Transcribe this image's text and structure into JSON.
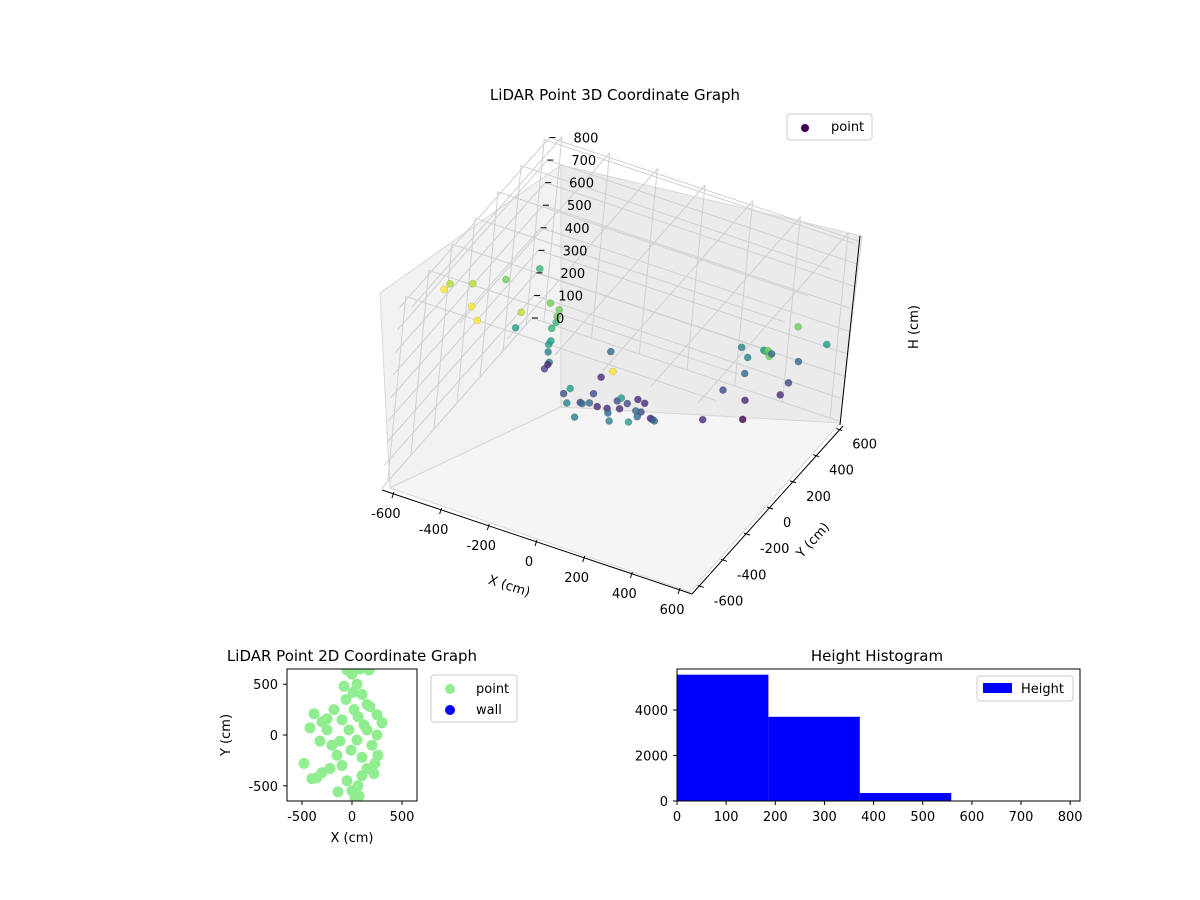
{
  "chart_data": [
    {
      "type": "scatter",
      "projection": "3d",
      "title": "LiDAR Point 3D Coordinate Graph",
      "xlabel": "X (cm)",
      "ylabel": "Y (cm)",
      "zlabel": "H (cm)",
      "xlim": [
        -650,
        650
      ],
      "ylim": [
        -650,
        650
      ],
      "zlim": [
        0,
        820
      ],
      "z_inverted": true,
      "x_ticks": [
        -600,
        -400,
        -200,
        0,
        200,
        400,
        600
      ],
      "y_ticks": [
        -600,
        -400,
        -200,
        0,
        200,
        400,
        600
      ],
      "z_ticks": [
        0,
        100,
        200,
        300,
        400,
        500,
        600,
        700,
        800
      ],
      "grid": true,
      "legend": {
        "position": "top-right",
        "entries": [
          "point"
        ]
      },
      "colormap": "viridis",
      "series": [
        {
          "name": "point",
          "points": [
            [
              -100,
              50,
              150
            ],
            [
              -80,
              100,
              120
            ],
            [
              -50,
              150,
              100
            ],
            [
              0,
              200,
              130
            ],
            [
              50,
              150,
              160
            ],
            [
              100,
              100,
              140
            ],
            [
              -150,
              0,
              180
            ],
            [
              -120,
              50,
              200
            ],
            [
              0,
              100,
              170
            ],
            [
              80,
              50,
              190
            ],
            [
              150,
              0,
              210
            ],
            [
              -200,
              -50,
              230
            ],
            [
              -100,
              -100,
              250
            ],
            [
              0,
              0,
              240
            ],
            [
              100,
              -50,
              260
            ],
            [
              200,
              -100,
              280
            ],
            [
              -50,
              -150,
              300
            ],
            [
              50,
              -200,
              320
            ],
            [
              150,
              -150,
              310
            ],
            [
              -300,
              0,
              350
            ],
            [
              -250,
              -100,
              380
            ],
            [
              -280,
              -50,
              420
            ],
            [
              -260,
              -80,
              460
            ],
            [
              -270,
              -60,
              500
            ],
            [
              -250,
              -70,
              540
            ],
            [
              -240,
              -90,
              580
            ],
            [
              -230,
              -100,
              620
            ],
            [
              -260,
              -120,
              650
            ],
            [
              350,
              400,
              50
            ],
            [
              360,
              380,
              150
            ],
            [
              340,
              400,
              250
            ],
            [
              350,
              390,
              330
            ],
            [
              330,
              370,
              380
            ],
            [
              0,
              -400,
              400
            ],
            [
              100,
              -300,
              360
            ],
            [
              -100,
              -250,
              340
            ],
            [
              200,
              -350,
              420
            ],
            [
              -400,
              -100,
              480
            ],
            [
              -450,
              200,
              550
            ],
            [
              -500,
              0,
              600
            ],
            [
              -550,
              -200,
              680
            ],
            [
              -600,
              -300,
              720
            ],
            [
              -580,
              -400,
              760
            ],
            [
              -420,
              -500,
              800
            ],
            [
              -350,
              -600,
              820
            ],
            [
              -300,
              -300,
              700
            ],
            [
              200,
              -550,
              760
            ],
            [
              450,
              300,
              450
            ],
            [
              500,
              200,
              520
            ],
            [
              550,
              100,
              600
            ],
            [
              600,
              0,
              650
            ],
            [
              580,
              300,
              600
            ],
            [
              620,
              500,
              420
            ],
            [
              520,
              480,
              320
            ],
            [
              480,
              500,
              200
            ],
            [
              430,
              550,
              100
            ],
            [
              400,
              500,
              300
            ],
            [
              -350,
              100,
              200
            ],
            [
              -380,
              200,
              150
            ],
            [
              -200,
              300,
              100
            ],
            [
              250,
              250,
              100
            ],
            [
              300,
              300,
              220
            ],
            [
              -150,
              250,
              260
            ],
            [
              120,
              -250,
              440
            ],
            [
              -50,
              -350,
              480
            ]
          ]
        }
      ]
    },
    {
      "type": "scatter",
      "title": "LiDAR Point 2D Coordinate Graph",
      "xlabel": "X (cm)",
      "ylabel": "Y (cm)",
      "xlim": [
        -650,
        650
      ],
      "ylim": [
        -650,
        650
      ],
      "x_ticks": [
        -500,
        0,
        500
      ],
      "y_ticks": [
        -500,
        0,
        500
      ],
      "legend": {
        "position": "outside-right",
        "entries": [
          "point",
          "wall"
        ]
      },
      "series": [
        {
          "name": "point",
          "color": "#90ee90",
          "points": [
            [
              -480,
              -280
            ],
            [
              -400,
              -430
            ],
            [
              -350,
              -420
            ],
            [
              -300,
              -370
            ],
            [
              -420,
              70
            ],
            [
              -380,
              210
            ],
            [
              -300,
              130
            ],
            [
              -250,
              50
            ],
            [
              -200,
              -100
            ],
            [
              -150,
              -200
            ],
            [
              -100,
              -300
            ],
            [
              -50,
              -450
            ],
            [
              0,
              -550
            ],
            [
              30,
              -620
            ],
            [
              60,
              -500
            ],
            [
              100,
              -400
            ],
            [
              150,
              -330
            ],
            [
              220,
              -380
            ],
            [
              260,
              -200
            ],
            [
              200,
              -100
            ],
            [
              250,
              0
            ],
            [
              300,
              120
            ],
            [
              250,
              200
            ],
            [
              150,
              300
            ],
            [
              100,
              400
            ],
            [
              50,
              500
            ],
            [
              0,
              600
            ],
            [
              -50,
              640
            ],
            [
              80,
              650
            ],
            [
              170,
              640
            ],
            [
              -100,
              150
            ],
            [
              -30,
              50
            ],
            [
              50,
              -50
            ],
            [
              120,
              100
            ],
            [
              -180,
              250
            ],
            [
              -250,
              160
            ],
            [
              -320,
              -60
            ],
            [
              100,
              -220
            ],
            [
              180,
              280
            ],
            [
              -60,
              350
            ],
            [
              20,
              250
            ],
            [
              -10,
              -150
            ],
            [
              60,
              180
            ],
            [
              -120,
              -60
            ],
            [
              150,
              50
            ],
            [
              230,
              -280
            ],
            [
              -220,
              -330
            ],
            [
              10,
              420
            ],
            [
              -80,
              480
            ],
            [
              70,
              -600
            ],
            [
              -140,
              -560
            ]
          ]
        },
        {
          "name": "wall",
          "color": "#0000ff",
          "points": []
        }
      ]
    },
    {
      "type": "bar",
      "title": "Height Histogram",
      "xlabel": "",
      "ylabel": "",
      "xlim": [
        0,
        820
      ],
      "ylim": [
        0,
        5800
      ],
      "x_ticks": [
        0,
        100,
        200,
        300,
        400,
        500,
        600,
        700,
        800
      ],
      "y_ticks": [
        0,
        2000,
        4000
      ],
      "legend": {
        "position": "top-right",
        "entries": [
          "Height"
        ]
      },
      "series": [
        {
          "name": "Height",
          "color": "#0000ff",
          "bins": [
            0,
            186,
            372,
            558,
            744
          ],
          "values": [
            5550,
            3700,
            350,
            0
          ]
        }
      ]
    }
  ]
}
